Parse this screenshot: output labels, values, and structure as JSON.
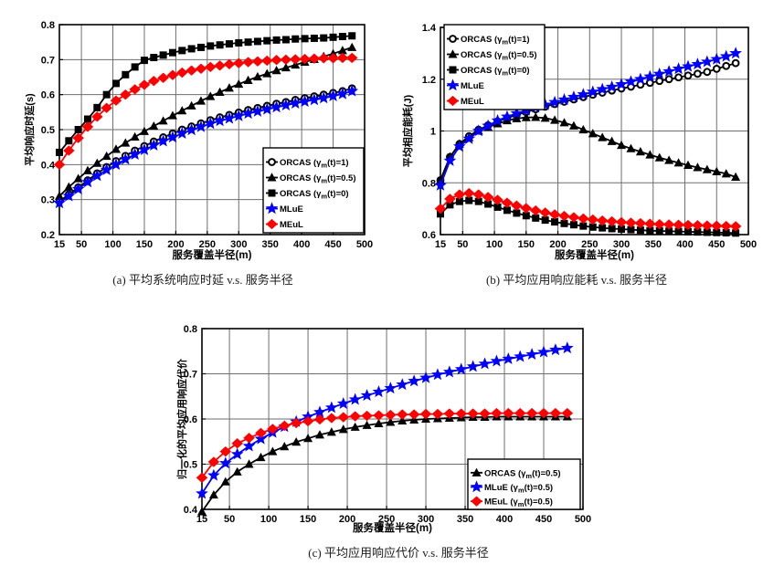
{
  "chart_data": [
    {
      "id": "a",
      "type": "line",
      "caption": "(a) 平均系统响应时延 v.s. 服务半径",
      "xlabel": "服务覆盖半径(m)",
      "ylabel": "平均响应时延(s)",
      "xlim": [
        15,
        500
      ],
      "ylim": [
        0.2,
        0.8
      ],
      "xticks": [
        15,
        50,
        100,
        150,
        200,
        250,
        300,
        350,
        400,
        450,
        500
      ],
      "yticks": [
        0.2,
        0.3,
        0.4,
        0.5,
        0.6,
        0.7,
        0.8
      ],
      "grid": true,
      "legend_position": "inside-bottom-right",
      "x": [
        15,
        30,
        45,
        60,
        75,
        90,
        105,
        120,
        135,
        150,
        165,
        180,
        195,
        210,
        225,
        240,
        255,
        270,
        285,
        300,
        315,
        330,
        345,
        360,
        375,
        390,
        405,
        420,
        435,
        450,
        465,
        480
      ],
      "series": [
        {
          "label": "ORCAS (γ_m(t)=1)",
          "marker": "circle",
          "color": "#000000",
          "values": [
            0.295,
            0.315,
            0.335,
            0.355,
            0.375,
            0.393,
            0.41,
            0.425,
            0.44,
            0.453,
            0.466,
            0.478,
            0.489,
            0.5,
            0.509,
            0.518,
            0.527,
            0.535,
            0.542,
            0.549,
            0.556,
            0.562,
            0.568,
            0.574,
            0.579,
            0.585,
            0.59,
            0.595,
            0.6,
            0.605,
            0.61,
            0.618
          ]
        },
        {
          "label": "ORCAS (γ_m(t)=0.5)",
          "marker": "triangle",
          "color": "#000000",
          "values": [
            0.31,
            0.336,
            0.36,
            0.383,
            0.404,
            0.424,
            0.444,
            0.462,
            0.479,
            0.495,
            0.51,
            0.525,
            0.54,
            0.554,
            0.568,
            0.582,
            0.595,
            0.607,
            0.619,
            0.63,
            0.641,
            0.651,
            0.66,
            0.669,
            0.677,
            0.685,
            0.693,
            0.701,
            0.709,
            0.717,
            0.726,
            0.735
          ]
        },
        {
          "label": "ORCAS (γ_m(t)=0)",
          "marker": "square",
          "color": "#000000",
          "values": [
            0.435,
            0.468,
            0.5,
            0.53,
            0.563,
            0.6,
            0.632,
            0.657,
            0.679,
            0.698,
            0.706,
            0.713,
            0.72,
            0.726,
            0.731,
            0.735,
            0.739,
            0.742,
            0.745,
            0.748,
            0.75,
            0.752,
            0.754,
            0.756,
            0.757,
            0.759,
            0.76,
            0.761,
            0.762,
            0.764,
            0.766,
            0.768
          ]
        },
        {
          "label": "MLuE",
          "marker": "star",
          "color": "#0000ff",
          "values": [
            0.29,
            0.31,
            0.33,
            0.35,
            0.368,
            0.385,
            0.4,
            0.415,
            0.429,
            0.442,
            0.455,
            0.467,
            0.478,
            0.489,
            0.499,
            0.508,
            0.517,
            0.525,
            0.532,
            0.539,
            0.546,
            0.552,
            0.558,
            0.564,
            0.57,
            0.575,
            0.58,
            0.585,
            0.59,
            0.596,
            0.602,
            0.61
          ]
        },
        {
          "label": "MEuL",
          "marker": "diamond",
          "color": "#ff0000",
          "values": [
            0.4,
            0.44,
            0.476,
            0.508,
            0.537,
            0.562,
            0.583,
            0.6,
            0.615,
            0.628,
            0.639,
            0.648,
            0.656,
            0.663,
            0.669,
            0.674,
            0.679,
            0.683,
            0.687,
            0.69,
            0.693,
            0.695,
            0.697,
            0.699,
            0.7,
            0.701,
            0.702,
            0.703,
            0.704,
            0.704,
            0.705,
            0.705
          ]
        }
      ]
    },
    {
      "id": "b",
      "type": "line",
      "caption": "(b) 平均应用响应能耗 v.s. 服务半径",
      "xlabel": "服务覆盖半径(m)",
      "ylabel": "平均相应能耗(J)",
      "xlim": [
        15,
        500
      ],
      "ylim": [
        0.6,
        1.4
      ],
      "xticks": [
        15,
        50,
        100,
        150,
        200,
        250,
        300,
        350,
        400,
        450,
        500
      ],
      "yticks": [
        0.6,
        0.8,
        1,
        1.2,
        1.4
      ],
      "grid": true,
      "legend_position": "inside-top-left",
      "x": [
        15,
        30,
        45,
        60,
        75,
        90,
        105,
        120,
        135,
        150,
        165,
        180,
        195,
        210,
        225,
        240,
        255,
        270,
        285,
        300,
        315,
        330,
        345,
        360,
        375,
        390,
        405,
        420,
        435,
        450,
        465,
        480
      ],
      "series": [
        {
          "label": "ORCAS (γ_m(t)=1)",
          "marker": "circle",
          "color": "#000000",
          "values": [
            0.81,
            0.9,
            0.95,
            0.98,
            1.005,
            1.022,
            1.037,
            1.05,
            1.062,
            1.073,
            1.084,
            1.094,
            1.104,
            1.113,
            1.122,
            1.131,
            1.14,
            1.148,
            1.156,
            1.164,
            1.171,
            1.179,
            1.186,
            1.193,
            1.2,
            1.207,
            1.214,
            1.221,
            1.228,
            1.24,
            1.251,
            1.262
          ]
        },
        {
          "label": "ORCAS (γ_m(t)=0.5)",
          "marker": "triangle",
          "color": "#000000",
          "values": [
            0.81,
            0.9,
            0.95,
            0.975,
            1.0,
            1.015,
            1.028,
            1.04,
            1.048,
            1.052,
            1.053,
            1.05,
            1.042,
            1.032,
            1.02,
            1.005,
            0.99,
            0.975,
            0.96,
            0.945,
            0.932,
            0.92,
            0.908,
            0.897,
            0.887,
            0.877,
            0.868,
            0.859,
            0.851,
            0.843,
            0.835,
            0.822
          ]
        },
        {
          "label": "ORCAS (γ_m(t)=0)",
          "marker": "square",
          "color": "#000000",
          "values": [
            0.68,
            0.715,
            0.728,
            0.732,
            0.728,
            0.718,
            0.706,
            0.694,
            0.683,
            0.673,
            0.664,
            0.656,
            0.649,
            0.643,
            0.638,
            0.633,
            0.629,
            0.626,
            0.623,
            0.621,
            0.619,
            0.617,
            0.615,
            0.614,
            0.613,
            0.612,
            0.611,
            0.61,
            0.609,
            0.608,
            0.607,
            0.606
          ]
        },
        {
          "label": "MLuE",
          "marker": "star",
          "color": "#0000ff",
          "values": [
            0.79,
            0.885,
            0.94,
            0.97,
            1.0,
            1.02,
            1.04,
            1.055,
            1.068,
            1.08,
            1.091,
            1.101,
            1.111,
            1.121,
            1.131,
            1.141,
            1.151,
            1.161,
            1.17,
            1.18,
            1.19,
            1.2,
            1.21,
            1.22,
            1.23,
            1.24,
            1.249,
            1.258,
            1.267,
            1.277,
            1.288,
            1.3
          ]
        },
        {
          "label": "MEuL",
          "marker": "diamond",
          "color": "#ff0000",
          "values": [
            0.7,
            0.738,
            0.755,
            0.76,
            0.755,
            0.745,
            0.734,
            0.723,
            0.712,
            0.702,
            0.693,
            0.685,
            0.678,
            0.672,
            0.667,
            0.662,
            0.658,
            0.654,
            0.651,
            0.648,
            0.646,
            0.644,
            0.642,
            0.64,
            0.639,
            0.638,
            0.637,
            0.636,
            0.635,
            0.634,
            0.633,
            0.632
          ]
        }
      ]
    },
    {
      "id": "c",
      "type": "line",
      "caption": "(c) 平均应用响应代价 v.s. 服务半径",
      "xlabel": "服务覆盖半径(m)",
      "ylabel": "归一化的平均应用响应代价",
      "xlim": [
        15,
        500
      ],
      "ylim": [
        0.4,
        0.8
      ],
      "xticks": [
        15,
        50,
        100,
        150,
        200,
        250,
        300,
        350,
        400,
        450,
        500
      ],
      "yticks": [
        0.4,
        0.5,
        0.6,
        0.7,
        0.8
      ],
      "grid": true,
      "legend_position": "inside-bottom-right",
      "x": [
        15,
        30,
        45,
        60,
        75,
        90,
        105,
        120,
        135,
        150,
        165,
        180,
        195,
        210,
        225,
        240,
        255,
        270,
        285,
        300,
        315,
        330,
        345,
        360,
        375,
        390,
        405,
        420,
        435,
        450,
        465,
        480
      ],
      "series": [
        {
          "label": "ORCAS (γ_m(t)=0.5)",
          "marker": "triangle",
          "color": "#000000",
          "values": [
            0.395,
            0.432,
            0.461,
            0.483,
            0.5,
            0.515,
            0.528,
            0.539,
            0.549,
            0.557,
            0.565,
            0.571,
            0.577,
            0.582,
            0.586,
            0.59,
            0.593,
            0.596,
            0.598,
            0.6,
            0.601,
            0.602,
            0.603,
            0.604,
            0.604,
            0.605,
            0.605,
            0.605,
            0.605,
            0.605,
            0.605,
            0.605
          ]
        },
        {
          "label": "MLuE (γ_m(t)=0.5)",
          "marker": "star",
          "color": "#0000ff",
          "values": [
            0.435,
            0.475,
            0.502,
            0.522,
            0.54,
            0.556,
            0.57,
            0.583,
            0.594,
            0.605,
            0.615,
            0.625,
            0.634,
            0.643,
            0.652,
            0.66,
            0.668,
            0.676,
            0.684,
            0.691,
            0.698,
            0.704,
            0.71,
            0.716,
            0.722,
            0.728,
            0.733,
            0.738,
            0.743,
            0.748,
            0.753,
            0.757
          ]
        },
        {
          "label": "MEuL (γ_m(t)=0.5)",
          "marker": "diamond",
          "color": "#ff0000",
          "values": [
            0.47,
            0.505,
            0.528,
            0.546,
            0.558,
            0.569,
            0.578,
            0.585,
            0.591,
            0.595,
            0.599,
            0.602,
            0.604,
            0.606,
            0.607,
            0.608,
            0.609,
            0.61,
            0.61,
            0.611,
            0.611,
            0.612,
            0.612,
            0.612,
            0.612,
            0.613,
            0.613,
            0.613,
            0.613,
            0.613,
            0.613,
            0.613
          ]
        }
      ]
    }
  ]
}
